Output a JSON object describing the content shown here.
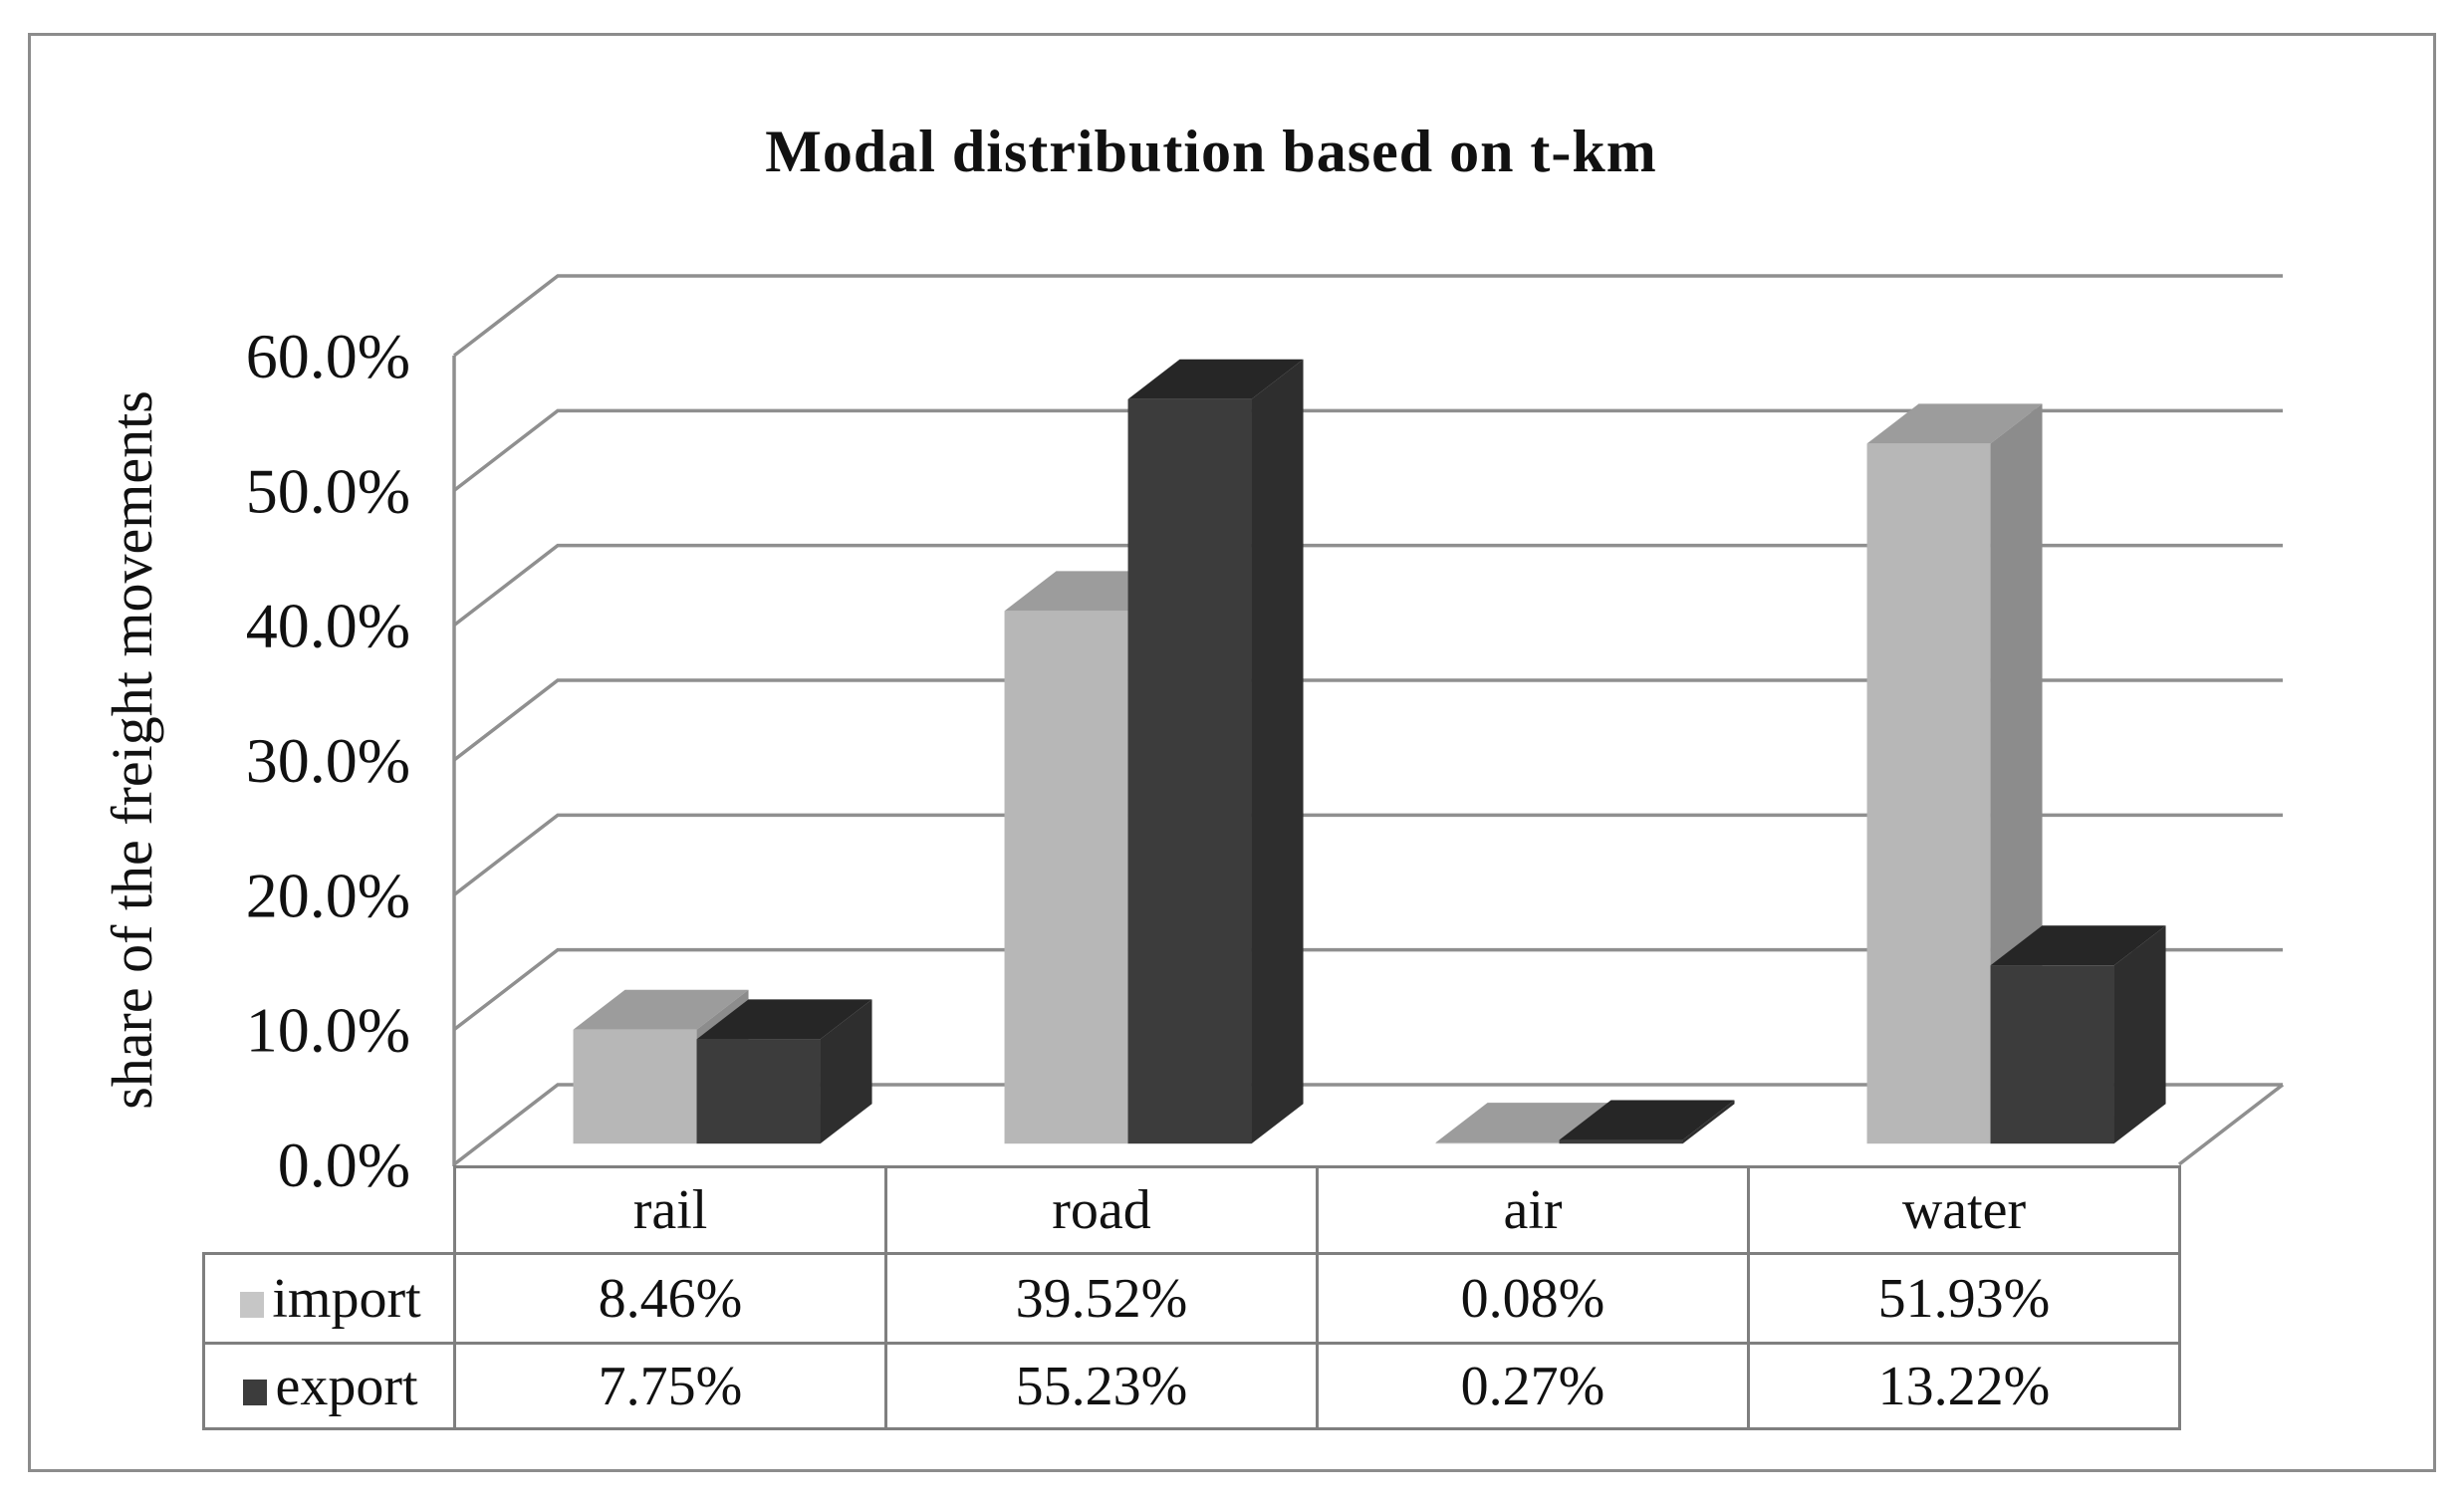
{
  "figure": {
    "background": "#ffffff",
    "border_color": "#8c8c8c"
  },
  "chart_data": {
    "type": "bar",
    "projection": "3d",
    "title": "Modal distribution based on t-km",
    "ylabel": "share of the freight movements",
    "xlabel": "",
    "categories": [
      "rail",
      "road",
      "air",
      "water"
    ],
    "series": [
      {
        "name": "import",
        "values": [
          8.46,
          39.52,
          0.08,
          51.93
        ],
        "display": [
          "8.46%",
          "39.52%",
          "0.08%",
          "51.93%"
        ],
        "color": "#b7b7b7",
        "color_top": "#9c9c9c",
        "color_side": "#8c8c8c",
        "swatch": "#c6c6c6"
      },
      {
        "name": "export",
        "values": [
          7.75,
          55.23,
          0.27,
          13.22
        ],
        "display": [
          "7.75%",
          "55.23%",
          "0.27%",
          "13.22%"
        ],
        "color": "#3c3c3c",
        "color_top": "#262626",
        "color_side": "#2e2e2e",
        "swatch": "#3c3c3c"
      }
    ],
    "y_ticks": [
      "0.0%",
      "10.0%",
      "20.0%",
      "30.0%",
      "40.0%",
      "50.0%",
      "60.0%"
    ],
    "ylim": [
      0,
      60
    ],
    "grid": true,
    "grid_color": "#8f8f8f",
    "axis_color": "#8f8f8f",
    "text_color": "#111111",
    "table_border_color": "#7f7f7f",
    "legend_position": "table-left"
  }
}
